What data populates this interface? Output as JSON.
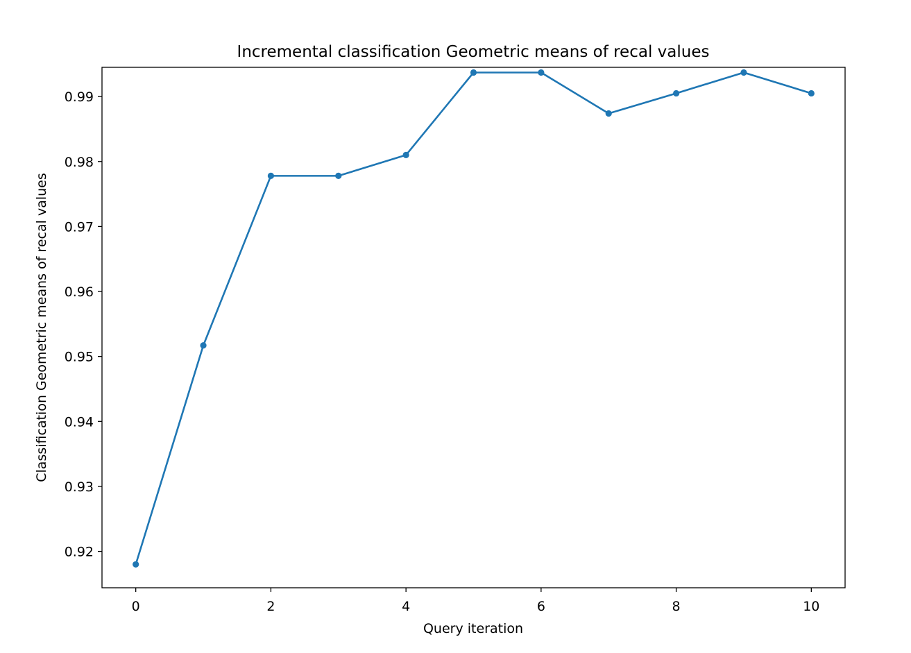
{
  "chart_data": {
    "type": "line",
    "title": "Incremental classification Geometric means of recal values",
    "xlabel": "Query iteration",
    "ylabel": "Classification Geometric means of recal values",
    "x": [
      0,
      1,
      2,
      3,
      4,
      5,
      6,
      7,
      8,
      9,
      10
    ],
    "series": [
      {
        "values": [
          0.918,
          0.9517,
          0.9778,
          0.9778,
          0.981,
          0.9937,
          0.9937,
          0.9874,
          0.9905,
          0.9937,
          0.9905
        ],
        "color": "#1f77b4",
        "marker": "circle"
      }
    ],
    "xlim": [
      -0.5,
      10.5
    ],
    "ylim": [
      0.9144,
      0.9945
    ],
    "xticks": [
      0,
      2,
      4,
      6,
      8,
      10
    ],
    "yticks": [
      0.92,
      0.93,
      0.94,
      0.95,
      0.96,
      0.97,
      0.98,
      0.99
    ],
    "ytick_labels": [
      "0.92",
      "0.93",
      "0.94",
      "0.95",
      "0.96",
      "0.97",
      "0.98",
      "0.99"
    ],
    "grid": false,
    "legend": "none"
  }
}
